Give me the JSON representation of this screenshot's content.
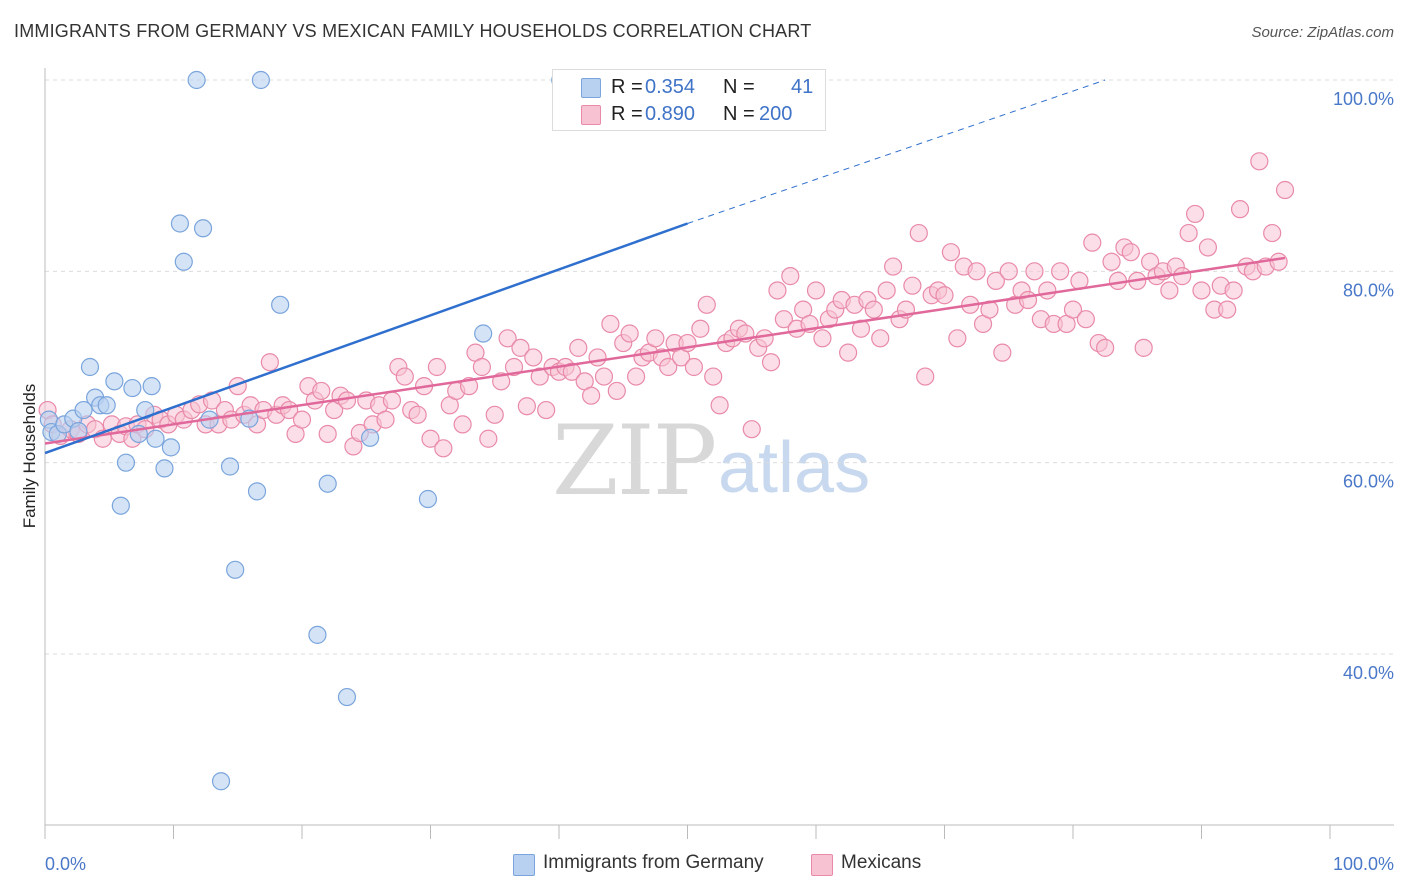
{
  "title": "IMMIGRANTS FROM GERMANY VS MEXICAN FAMILY HOUSEHOLDS CORRELATION CHART",
  "source": "Source: ZipAtlas.com",
  "watermark": {
    "zip": "ZIP",
    "atlas": "atlas"
  },
  "legend": {
    "germany": {
      "r_label": "R =",
      "r_value": "0.354",
      "n_label": "N =",
      "n_value": "41"
    },
    "mexicans": {
      "r_label": "R =",
      "r_value": "0.890",
      "n_label": "N =",
      "n_value": "200"
    }
  },
  "bottom_legend": {
    "germany": "Immigrants from Germany",
    "mexicans": "Mexicans"
  },
  "colors": {
    "germany_fill": "#b8d1f0",
    "germany_stroke": "#7aa5dc",
    "germany_line": "#2f6fcd",
    "mexicans_fill": "#f7c3d3",
    "mexicans_stroke": "#e98aa9",
    "mexicans_line": "#e0689a",
    "tick_label": "#4a78c8",
    "grid": "#dcdcdc"
  },
  "chart_data": {
    "type": "scatter",
    "title": "IMMIGRANTS FROM GERMANY VS MEXICAN FAMILY HOUSEHOLDS CORRELATION CHART",
    "xlabel": "",
    "ylabel": "Family Households",
    "xlim": [
      0,
      100
    ],
    "ylim": [
      20,
      105
    ],
    "x_tick_labels": [
      "0.0%",
      "100.0%"
    ],
    "y_ticks": [
      40,
      60,
      80,
      100
    ],
    "y_tick_labels": [
      "40.0%",
      "60.0%",
      "80.0%",
      "100.0%"
    ],
    "grid": "horizontal dashed",
    "legend_position": "top-center",
    "series": [
      {
        "name": "Immigrants from Germany",
        "trend": {
          "x": [
            0,
            50
          ],
          "y": [
            61,
            85
          ],
          "dashed_extension": {
            "x": [
              50,
              82.5
            ],
            "y": [
              85,
              100
            ]
          }
        },
        "points": [
          [
            0.3,
            64.5
          ],
          [
            0.5,
            63.2
          ],
          [
            1,
            63
          ],
          [
            1.5,
            64
          ],
          [
            2.2,
            64.6
          ],
          [
            2.6,
            63.3
          ],
          [
            3,
            65.5
          ],
          [
            3.5,
            70
          ],
          [
            3.9,
            66.8
          ],
          [
            4.3,
            66
          ],
          [
            4.8,
            66
          ],
          [
            5.4,
            68.5
          ],
          [
            5.9,
            55.5
          ],
          [
            6.3,
            60
          ],
          [
            6.8,
            67.8
          ],
          [
            7.3,
            63
          ],
          [
            7.8,
            65.5
          ],
          [
            8.3,
            68
          ],
          [
            8.6,
            62.5
          ],
          [
            9.3,
            59.4
          ],
          [
            9.8,
            61.6
          ],
          [
            10.5,
            85
          ],
          [
            10.8,
            81
          ],
          [
            11.8,
            100
          ],
          [
            12.3,
            84.5
          ],
          [
            12.8,
            64.5
          ],
          [
            13.7,
            26.7
          ],
          [
            14.4,
            59.6
          ],
          [
            14.8,
            48.8
          ],
          [
            15.9,
            64.6
          ],
          [
            16.5,
            57
          ],
          [
            16.8,
            100
          ],
          [
            18.3,
            76.5
          ],
          [
            21.2,
            42
          ],
          [
            22,
            57.8
          ],
          [
            23.5,
            35.5
          ],
          [
            25.3,
            62.6
          ],
          [
            29.8,
            56.2
          ],
          [
            34.1,
            73.5
          ],
          [
            40.1,
            100
          ],
          [
            47.8,
            100
          ]
        ]
      },
      {
        "name": "Mexicans",
        "trend": {
          "x": [
            0,
            96.5
          ],
          "y": [
            62,
            81.4
          ]
        },
        "points": [
          [
            0.2,
            65.5
          ],
          [
            0.6,
            64
          ],
          [
            1.2,
            62.8
          ],
          [
            2,
            63.5
          ],
          [
            2.6,
            63
          ],
          [
            3.3,
            64
          ],
          [
            3.9,
            63.5
          ],
          [
            4.5,
            62.5
          ],
          [
            5.2,
            64
          ],
          [
            5.8,
            63
          ],
          [
            6.3,
            63.8
          ],
          [
            6.8,
            62.5
          ],
          [
            7.2,
            64
          ],
          [
            7.8,
            63.5
          ],
          [
            8.5,
            65
          ],
          [
            9,
            64.5
          ],
          [
            9.6,
            64
          ],
          [
            10.2,
            65
          ],
          [
            10.8,
            64.5
          ],
          [
            11.4,
            65.5
          ],
          [
            12,
            66.1
          ],
          [
            12.5,
            64
          ],
          [
            13,
            66.5
          ],
          [
            13.5,
            64
          ],
          [
            14,
            65.5
          ],
          [
            14.5,
            64.5
          ],
          [
            15,
            68
          ],
          [
            15.5,
            65
          ],
          [
            16,
            66
          ],
          [
            16.5,
            64
          ],
          [
            17,
            65.5
          ],
          [
            17.5,
            70.5
          ],
          [
            18,
            65
          ],
          [
            18.5,
            66
          ],
          [
            19,
            65.5
          ],
          [
            19.5,
            63
          ],
          [
            20,
            64.5
          ],
          [
            20.5,
            68
          ],
          [
            21,
            66.5
          ],
          [
            21.5,
            67.5
          ],
          [
            22,
            63
          ],
          [
            22.5,
            65.5
          ],
          [
            23,
            67
          ],
          [
            23.5,
            66.5
          ],
          [
            24,
            61.7
          ],
          [
            24.5,
            63.1
          ],
          [
            25,
            66.5
          ],
          [
            25.5,
            64
          ],
          [
            26,
            66
          ],
          [
            26.5,
            64.5
          ],
          [
            27,
            66.5
          ],
          [
            27.5,
            70
          ],
          [
            28,
            69
          ],
          [
            28.5,
            65.5
          ],
          [
            29,
            65
          ],
          [
            29.5,
            68
          ],
          [
            30,
            62.5
          ],
          [
            30.5,
            70
          ],
          [
            31,
            61.5
          ],
          [
            31.5,
            66
          ],
          [
            32,
            67.5
          ],
          [
            32.5,
            64
          ],
          [
            33,
            68
          ],
          [
            33.5,
            71.5
          ],
          [
            34,
            70
          ],
          [
            34.5,
            62.5
          ],
          [
            35,
            65
          ],
          [
            35.5,
            68.5
          ],
          [
            36,
            73
          ],
          [
            36.5,
            70
          ],
          [
            37,
            72
          ],
          [
            37.5,
            65.9
          ],
          [
            38,
            71
          ],
          [
            38.5,
            69
          ],
          [
            39,
            65.5
          ],
          [
            39.5,
            70
          ],
          [
            40,
            69.5
          ],
          [
            40.5,
            70
          ],
          [
            41,
            69.5
          ],
          [
            41.5,
            72
          ],
          [
            42,
            68.5
          ],
          [
            42.5,
            67
          ],
          [
            43,
            71
          ],
          [
            43.5,
            69
          ],
          [
            44,
            74.5
          ],
          [
            44.5,
            67.5
          ],
          [
            45,
            72.5
          ],
          [
            45.5,
            73.5
          ],
          [
            46,
            69
          ],
          [
            46.5,
            71
          ],
          [
            47,
            71.5
          ],
          [
            47.5,
            73
          ],
          [
            48,
            71
          ],
          [
            48.5,
            70
          ],
          [
            49,
            72.5
          ],
          [
            49.5,
            71
          ],
          [
            50,
            72.5
          ],
          [
            50.5,
            70
          ],
          [
            51,
            74
          ],
          [
            51.5,
            76.5
          ],
          [
            52,
            69
          ],
          [
            52.5,
            66
          ],
          [
            53,
            72.5
          ],
          [
            53.5,
            73
          ],
          [
            54,
            74
          ],
          [
            54.5,
            73.5
          ],
          [
            55,
            63.5
          ],
          [
            55.5,
            72
          ],
          [
            56,
            73
          ],
          [
            56.5,
            70.5
          ],
          [
            57,
            78
          ],
          [
            57.5,
            75
          ],
          [
            58,
            79.5
          ],
          [
            58.5,
            74
          ],
          [
            59,
            76
          ],
          [
            59.5,
            74.5
          ],
          [
            60,
            78
          ],
          [
            60.5,
            73
          ],
          [
            61,
            75
          ],
          [
            61.5,
            76
          ],
          [
            62,
            77
          ],
          [
            62.5,
            71.5
          ],
          [
            63,
            76.5
          ],
          [
            63.5,
            74
          ],
          [
            64,
            77
          ],
          [
            64.5,
            76
          ],
          [
            65,
            73
          ],
          [
            65.5,
            78
          ],
          [
            66,
            80.5
          ],
          [
            66.5,
            75
          ],
          [
            67,
            76
          ],
          [
            67.5,
            78.5
          ],
          [
            68,
            84
          ],
          [
            68.5,
            69
          ],
          [
            69,
            77.5
          ],
          [
            69.5,
            78
          ],
          [
            70,
            77.5
          ],
          [
            70.5,
            82
          ],
          [
            71,
            73
          ],
          [
            71.5,
            80.5
          ],
          [
            72,
            76.5
          ],
          [
            72.5,
            80
          ],
          [
            73,
            74.5
          ],
          [
            73.5,
            76
          ],
          [
            74,
            79
          ],
          [
            74.5,
            71.5
          ],
          [
            75,
            80
          ],
          [
            75.5,
            76.5
          ],
          [
            76,
            78
          ],
          [
            76.5,
            77
          ],
          [
            77,
            80
          ],
          [
            77.5,
            75
          ],
          [
            78,
            78
          ],
          [
            78.5,
            74.5
          ],
          [
            79,
            80
          ],
          [
            79.5,
            74.5
          ],
          [
            80,
            76
          ],
          [
            80.5,
            79
          ],
          [
            81,
            75
          ],
          [
            81.5,
            83
          ],
          [
            82,
            72.5
          ],
          [
            82.5,
            72
          ],
          [
            83,
            81
          ],
          [
            83.5,
            79
          ],
          [
            84,
            82.5
          ],
          [
            84.5,
            82
          ],
          [
            85,
            79
          ],
          [
            85.5,
            72
          ],
          [
            86,
            81
          ],
          [
            86.5,
            79.5
          ],
          [
            87,
            80
          ],
          [
            87.5,
            78
          ],
          [
            88,
            80.5
          ],
          [
            88.5,
            79.5
          ],
          [
            89,
            84
          ],
          [
            89.5,
            86
          ],
          [
            90,
            78
          ],
          [
            90.5,
            82.5
          ],
          [
            91,
            76
          ],
          [
            91.5,
            78.5
          ],
          [
            92,
            76
          ],
          [
            92.5,
            78
          ],
          [
            93,
            86.5
          ],
          [
            93.5,
            80.5
          ],
          [
            94,
            80
          ],
          [
            94.5,
            91.5
          ],
          [
            95,
            80.5
          ],
          [
            95.5,
            84
          ],
          [
            96,
            81
          ],
          [
            96.5,
            88.5
          ]
        ]
      }
    ]
  }
}
